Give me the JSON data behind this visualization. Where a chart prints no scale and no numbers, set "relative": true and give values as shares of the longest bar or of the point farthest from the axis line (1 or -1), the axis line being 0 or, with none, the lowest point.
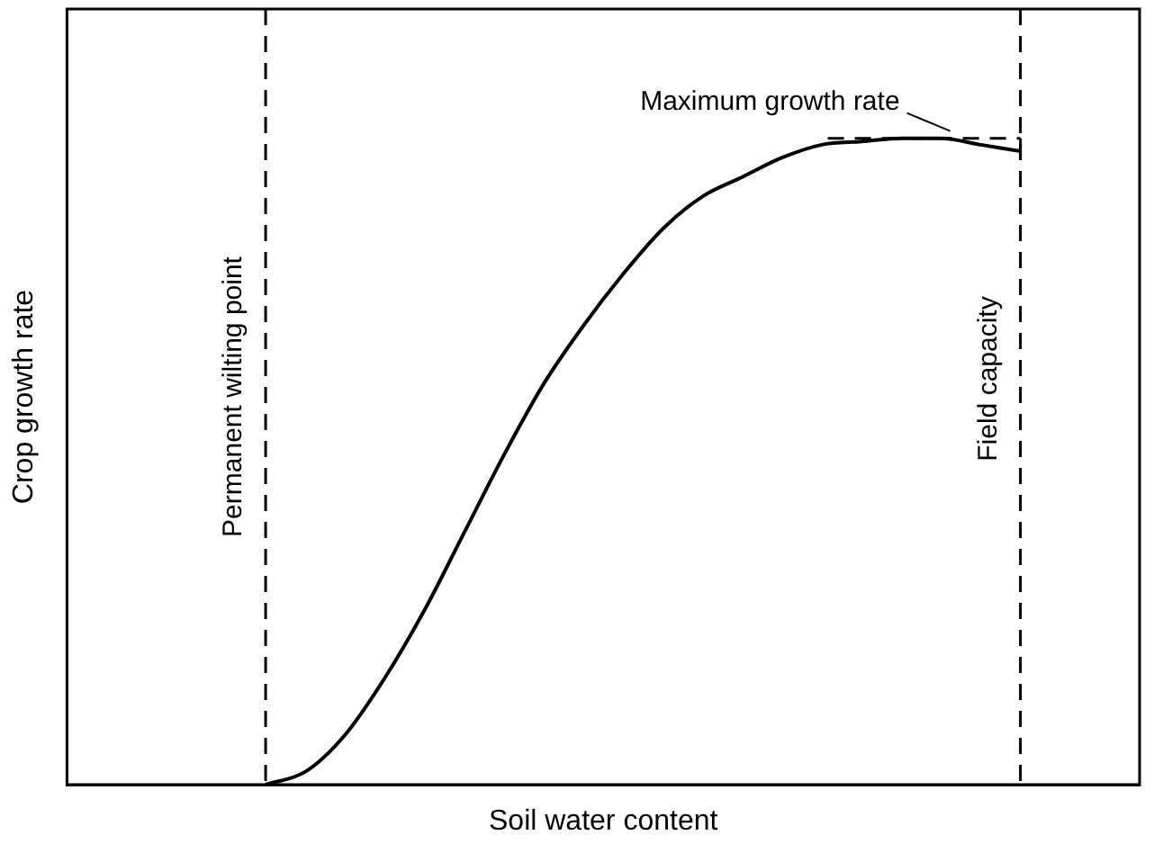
{
  "chart_data": {
    "type": "line",
    "relative": true,
    "xlabel": "Soil water content",
    "ylabel": "Crop growth rate",
    "categories": [
      null,
      null,
      null,
      null,
      null,
      null,
      null,
      null,
      null,
      null,
      null,
      null,
      null,
      null,
      null,
      null,
      null,
      null,
      null,
      null,
      null,
      null,
      null,
      null,
      null,
      null,
      null,
      null
    ],
    "series": [
      {
        "color": "#000000",
        "values": [
          null,
          null,
          null,
          null,
          null,
          0,
          0.02,
          0.077,
          0.165,
          0.27,
          0.39,
          0.51,
          0.62,
          0.71,
          0.79,
          0.86,
          0.91,
          0.94,
          0.97,
          0.99,
          0.995,
          1,
          1,
          0.99,
          0.98,
          null,
          null,
          null
        ]
      }
    ],
    "annotations": [
      "Permanent wilting point",
      "Field capacity"
    ],
    "ref_lines": [
      {
        "axis": "y",
        "value": 1,
        "label": "Maximum growth rate",
        "line_style": "dashed"
      }
    ],
    "legend": false,
    "grid": false,
    "marker": "none",
    "line_style": "solid"
  }
}
